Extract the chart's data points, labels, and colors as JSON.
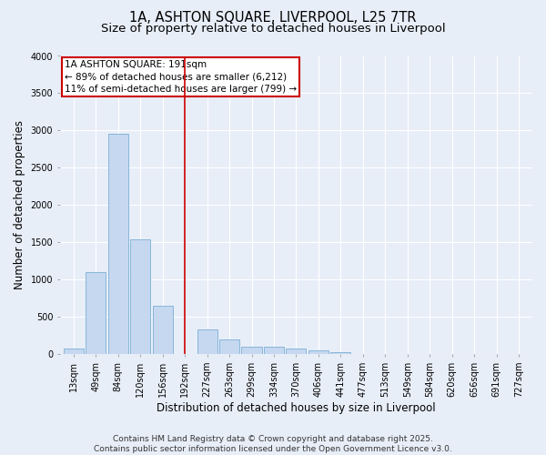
{
  "title_line1": "1A, ASHTON SQUARE, LIVERPOOL, L25 7TR",
  "title_line2": "Size of property relative to detached houses in Liverpool",
  "xlabel": "Distribution of detached houses by size in Liverpool",
  "ylabel": "Number of detached properties",
  "categories": [
    "13sqm",
    "49sqm",
    "84sqm",
    "120sqm",
    "156sqm",
    "192sqm",
    "227sqm",
    "263sqm",
    "299sqm",
    "334sqm",
    "370sqm",
    "406sqm",
    "441sqm",
    "477sqm",
    "513sqm",
    "549sqm",
    "584sqm",
    "620sqm",
    "656sqm",
    "691sqm",
    "727sqm"
  ],
  "values": [
    75,
    1100,
    2960,
    1540,
    650,
    0,
    330,
    200,
    100,
    100,
    80,
    50,
    30,
    0,
    0,
    0,
    0,
    0,
    0,
    0,
    0
  ],
  "bar_color": "#c5d8f0",
  "bar_edge_color": "#7bafd4",
  "vline_x_index": 5,
  "vline_color": "#cc0000",
  "annotation_text": "1A ASHTON SQUARE: 191sqm\n← 89% of detached houses are smaller (6,212)\n11% of semi-detached houses are larger (799) →",
  "annotation_box_color": "#cc0000",
  "ylim": [
    0,
    4000
  ],
  "yticks": [
    0,
    500,
    1000,
    1500,
    2000,
    2500,
    3000,
    3500,
    4000
  ],
  "footnote": "Contains HM Land Registry data © Crown copyright and database right 2025.\nContains public sector information licensed under the Open Government Licence v3.0.",
  "bg_color": "#e8eef8",
  "plot_bg_color": "#e8eef8",
  "title_fontsize": 10.5,
  "subtitle_fontsize": 9.5,
  "tick_fontsize": 7,
  "label_fontsize": 8.5,
  "footnote_fontsize": 6.5
}
